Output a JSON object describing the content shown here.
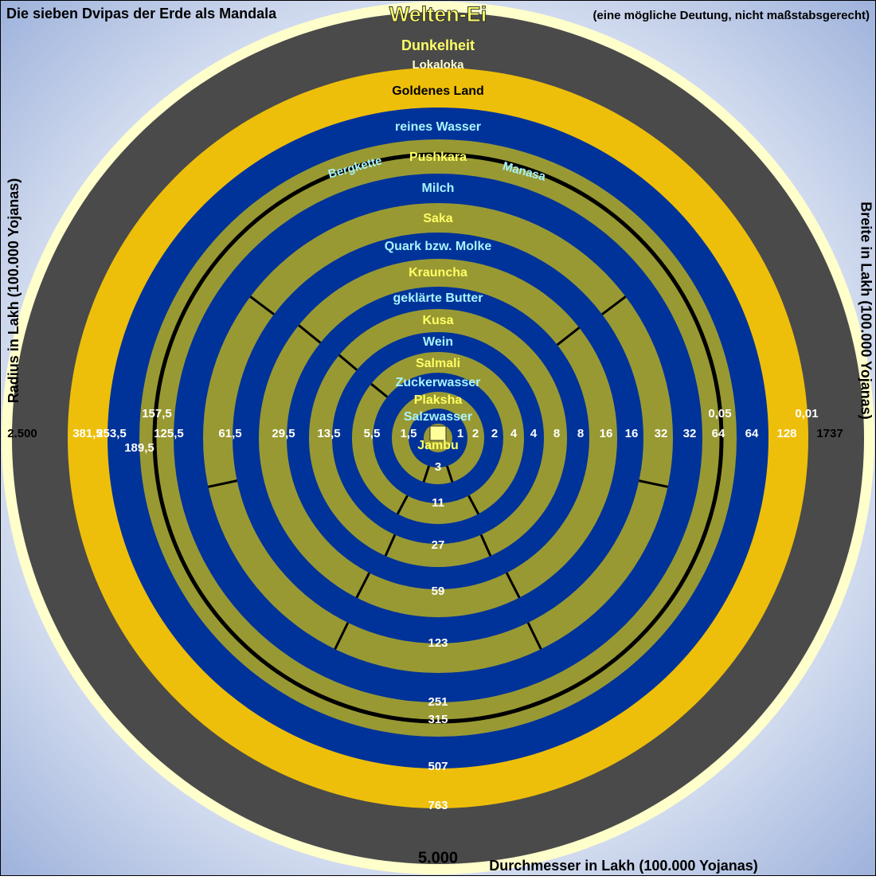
{
  "header": {
    "title": "Die sieben Dvipas der Erde als Mandala",
    "center_title": "Welten-Ei",
    "note": "(eine mögliche Deutung, nicht maßstabsgerecht)"
  },
  "axes": {
    "left": "Radius in Lakh (100.000 Yojanas)",
    "right": "Breite in Lakh (100.000 Yojanas)",
    "bottom": "Durchmesser in Lakh (100.000 Yojanas)",
    "bottom_total": "5.000"
  },
  "rings": [
    "Dunkelheit",
    "Lokaloka",
    "Goldenes Land",
    "reines Wasser",
    "Pushkara",
    "Milch",
    "Saka",
    "Quark bzw. Molke",
    "Krauncha",
    "geklärte Butter",
    "Kusa",
    "Wein",
    "Salmali",
    "Zuckerwasser",
    "Plaksha",
    "Salzwasser",
    "Jambu"
  ],
  "features": {
    "mountain": "Bergkette",
    "lake": "Manasa"
  },
  "left_labels": [
    "1,5",
    "5,5",
    "13,5",
    "29,5",
    "61,5",
    "125,5",
    "157,5",
    "189,5",
    "253,5",
    "381,5",
    "2.500"
  ],
  "right_labels": [
    "1",
    "2",
    "2",
    "4",
    "4",
    "8",
    "8",
    "16",
    "16",
    "32",
    "32",
    "64",
    "64",
    "128",
    "1737",
    "0,05",
    "0,01"
  ],
  "bottom_labels": [
    "3",
    "11",
    "27",
    "59",
    "123",
    "251",
    "315",
    "507",
    "763"
  ]
}
